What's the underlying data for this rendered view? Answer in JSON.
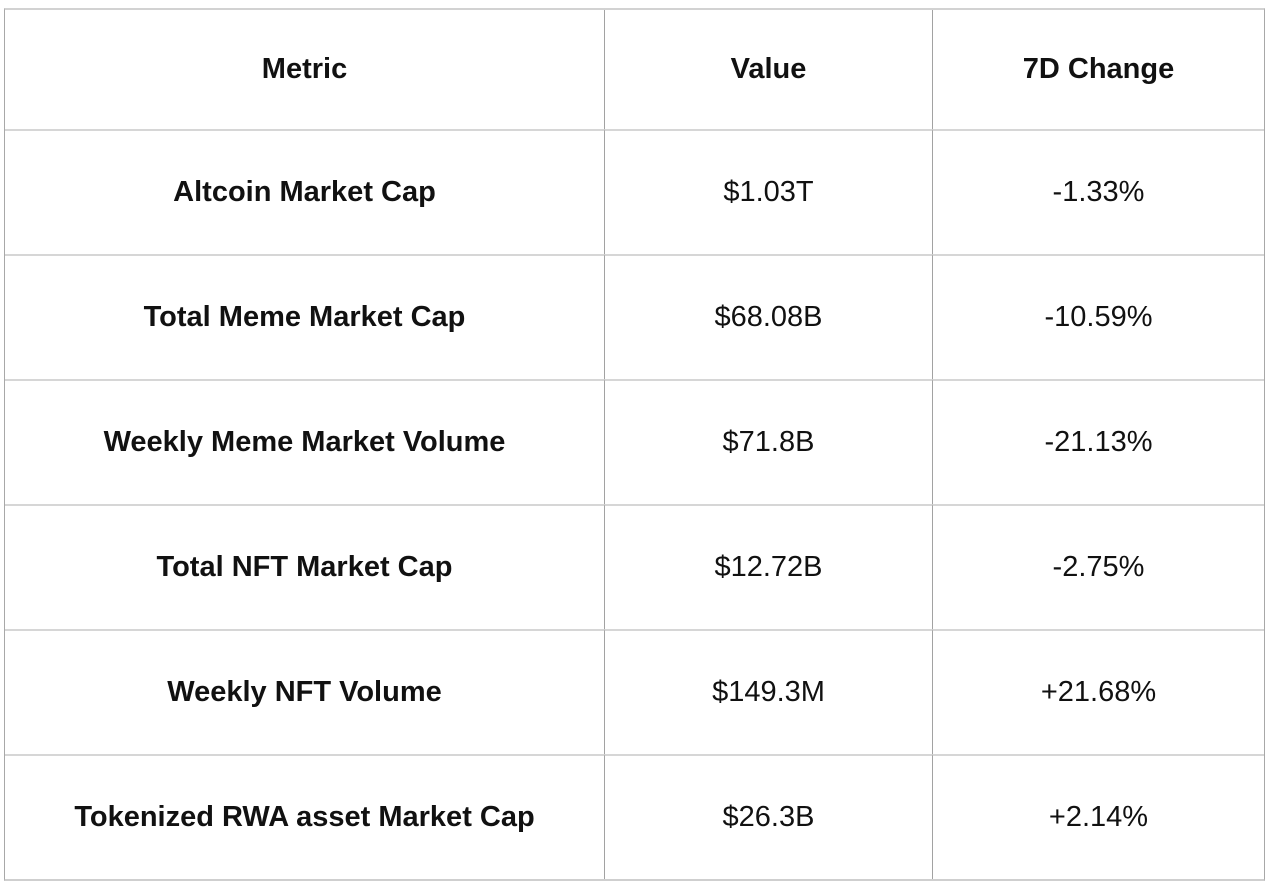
{
  "chart_data": {
    "type": "table",
    "columns": [
      "Metric",
      "Value",
      "7D Change"
    ],
    "rows": [
      {
        "metric": "Altcoin Market Cap",
        "value": "$1.03T",
        "change_7d": "-1.33%"
      },
      {
        "metric": "Total Meme Market Cap",
        "value": "$68.08B",
        "change_7d": "-10.59%"
      },
      {
        "metric": "Weekly Meme Market Volume",
        "value": "$71.8B",
        "change_7d": "-21.13%"
      },
      {
        "metric": "Total NFT Market Cap",
        "value": "$12.72B",
        "change_7d": "-2.75%"
      },
      {
        "metric": "Weekly NFT Volume",
        "value": "$149.3M",
        "change_7d": "+21.68%"
      },
      {
        "metric": "Tokenized RWA asset Market Cap",
        "value": "$26.3B",
        "change_7d": "+2.14%"
      }
    ],
    "layout": {
      "grid": "on",
      "header_style": "bold",
      "metric_column_style": "bold"
    },
    "colors": {
      "text": "#111111",
      "vertical_divider": "#a2a2a2",
      "horizontal_divider": "#d6d6d6",
      "background": "#ffffff"
    }
  }
}
